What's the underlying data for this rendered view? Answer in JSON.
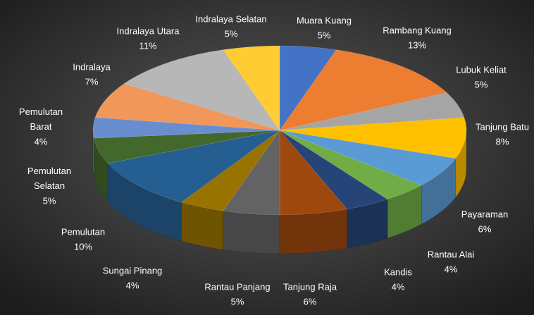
{
  "chart_data": {
    "type": "pie3d",
    "categories": [
      "Muara Kuang",
      "Rambang Kuang",
      "Lubuk Keliat",
      "Tanjung Batu",
      "Payaraman",
      "Rantau Alai",
      "Kandis",
      "Tanjung Raja",
      "Rantau Panjang",
      "Sungai Pinang",
      "Pemulutan",
      "Pemulutan Selatan",
      "Pemulutan Barat",
      "Indralaya",
      "Indralaya Utara",
      "Indralaya Selatan"
    ],
    "values": [
      5,
      13,
      5,
      8,
      6,
      4,
      4,
      6,
      5,
      4,
      10,
      5,
      4,
      7,
      11,
      5
    ],
    "value_labels": [
      "5%",
      "13%",
      "5%",
      "8%",
      "6%",
      "4%",
      "4%",
      "6%",
      "5%",
      "4%",
      "10%",
      "5%",
      "4%",
      "7%",
      "11%",
      "5%"
    ],
    "colors": [
      "#4472c4",
      "#ed7d31",
      "#a5a5a5",
      "#ffc000",
      "#5b9bd5",
      "#70ad47",
      "#264478",
      "#9e480e",
      "#636363",
      "#997300",
      "#255e91",
      "#43682b",
      "#698ed0",
      "#f1975a",
      "#b7b7b7",
      "#ffcd33"
    ]
  }
}
